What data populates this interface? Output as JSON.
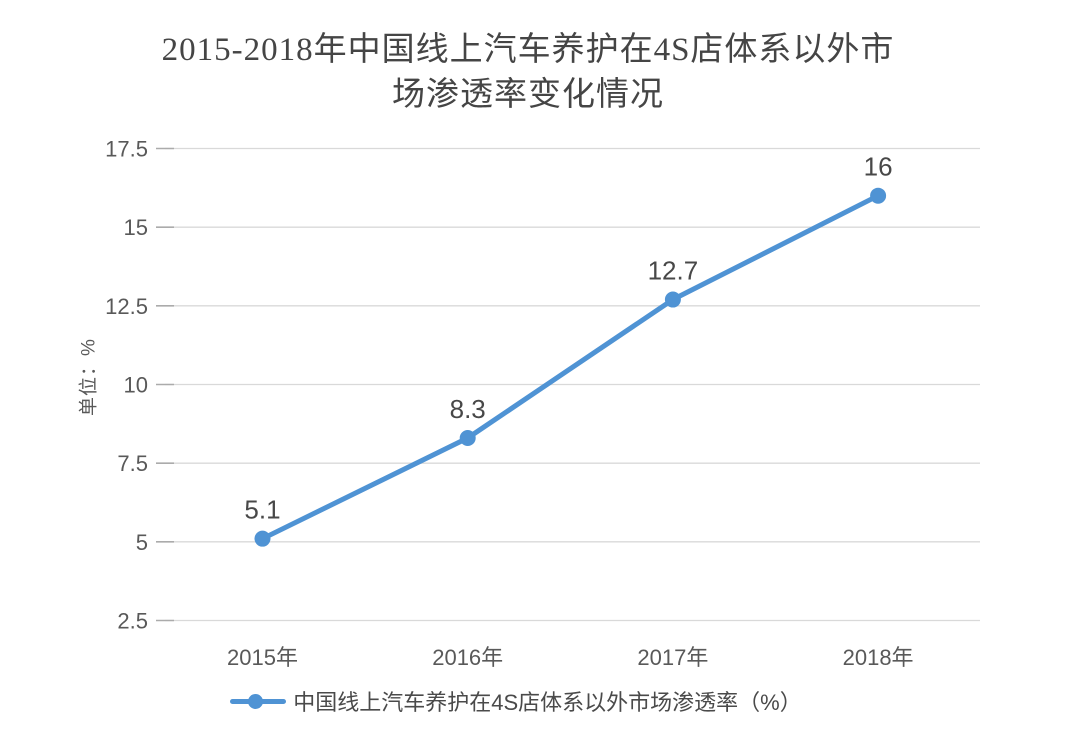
{
  "title": {
    "line1": "2015-2018年中国线上汽车养护在4S店体系以外市",
    "line2": "场渗透率变化情况"
  },
  "chart_data": {
    "type": "line",
    "title": "2015-2018年中国线上汽车养护在4S店体系以外市场渗透率变化情况",
    "categories": [
      "2015年",
      "2016年",
      "2017年",
      "2018年"
    ],
    "series": [
      {
        "name": "中国线上汽车养护在4S店体系以外市场渗透率（%）",
        "values": [
          5.1,
          8.3,
          12.7,
          16
        ]
      }
    ],
    "xlabel": "",
    "ylabel": "单位：%",
    "ylim": [
      2.5,
      17.5
    ],
    "yticks": [
      2.5,
      5,
      7.5,
      10,
      12.5,
      15,
      17.5
    ],
    "grid": true,
    "data_labels_shown": true,
    "legend_position": "bottom",
    "colors": {
      "series": "#4f93d4",
      "grid": "#d9d9d9",
      "tick": "#ababab",
      "tick_text": "#595959",
      "data_label_text": "#484848",
      "title_text": "#454545"
    }
  }
}
